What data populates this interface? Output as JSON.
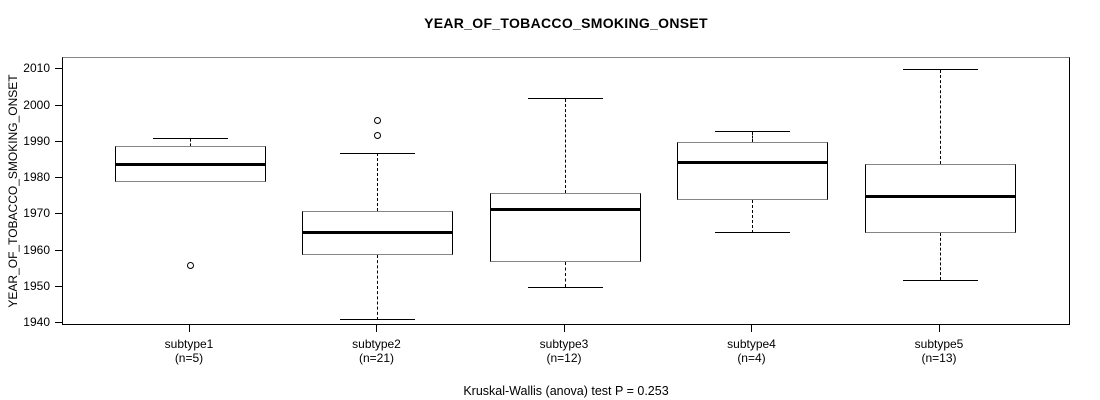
{
  "title": "YEAR_OF_TOBACCO_SMOKING_ONSET",
  "footer": "Kruskal-Wallis (anova) test P = 0.253",
  "chart_data": {
    "type": "boxplot",
    "title": "YEAR_OF_TOBACCO_SMOKING_ONSET",
    "ylabel": "YEAR_OF_TOBACCO_SMOKING_ONSET",
    "xlabel": "",
    "ylim": [
      1939.3,
      2013.3
    ],
    "yticks": [
      1940,
      1950,
      1960,
      1970,
      1980,
      1990,
      2000,
      2010
    ],
    "grid": false,
    "legend": "none",
    "annotation": "Kruskal-Wallis (anova) test P = 0.253",
    "categories": [
      "subtype1",
      "subtype2",
      "subtype3",
      "subtype4",
      "subtype5"
    ],
    "sample_size_labels": [
      "(n=5)",
      "(n=21)",
      "(n=12)",
      "(n=4)",
      "(n=13)"
    ],
    "boxes": [
      {
        "label": "subtype1",
        "n": 5,
        "whisker_low": 1979,
        "q1": 1979,
        "median": 1984,
        "q3": 1989,
        "whisker_high": 1991,
        "outliers": [
          1956
        ]
      },
      {
        "label": "subtype2",
        "n": 21,
        "whisker_low": 1941,
        "q1": 1959,
        "median": 1965,
        "q3": 1971,
        "whisker_high": 1987,
        "outliers": [
          1992,
          1996
        ]
      },
      {
        "label": "subtype3",
        "n": 12,
        "whisker_low": 1950,
        "q1": 1957,
        "median": 1971.5,
        "q3": 1976,
        "whisker_high": 2002,
        "outliers": []
      },
      {
        "label": "subtype4",
        "n": 4,
        "whisker_low": 1965,
        "q1": 1974,
        "median": 1984.5,
        "q3": 1990,
        "whisker_high": 1993,
        "outliers": []
      },
      {
        "label": "subtype5",
        "n": 13,
        "whisker_low": 1952,
        "q1": 1965,
        "median": 1975,
        "q3": 1984,
        "whisker_high": 2010,
        "outliers": []
      }
    ],
    "colors": {
      "line": "#000000",
      "box_fill": "#ffffff",
      "box_edge_h": "#858585",
      "background": "#ffffff"
    }
  }
}
